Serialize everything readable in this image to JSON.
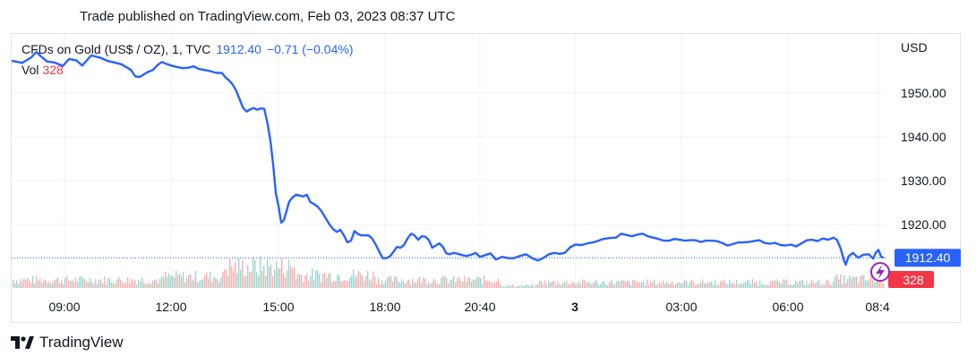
{
  "header": {
    "published": "Trade published on TradingView.com, Feb 03, 2023 08:37 UTC"
  },
  "legend": {
    "symbol": "CFDs on Gold (US$ / OZ), 1, TVC",
    "last": "1912.40",
    "change": "−0.71 (−0.04%)"
  },
  "volume": {
    "label": "Vol",
    "value": "328"
  },
  "currency": "USD",
  "watermark": {
    "brand": "TradingView"
  },
  "colors": {
    "line": "#2962ff",
    "vol_up": "#26a69a",
    "vol_down": "#ef5350",
    "last_badge": "#2962ff",
    "vol_badge": "#f23645",
    "lightning": "#9c27b0"
  },
  "chart_data": {
    "type": "line",
    "title": "CFDs on Gold (US$ / OZ), 1, TVC",
    "ylabel": "USD",
    "yticks": [
      "1950.00",
      "1940.00",
      "1930.00",
      "1920.00"
    ],
    "ylim": [
      1905.5,
      1963.5
    ],
    "xticks": [
      "09:00",
      "12:00",
      "15:00",
      "18:00",
      "20:40",
      "3",
      "03:00",
      "06:00",
      "08:4"
    ],
    "last_price": 1912.4,
    "last_price_label": "1912.40",
    "last_volume": 328,
    "last_volume_label": "328",
    "series": [
      {
        "values": [
          [
            0,
            1957.4
          ],
          [
            12,
            1956.9
          ],
          [
            22,
            1958.1
          ],
          [
            28,
            1959.4
          ],
          [
            32,
            1958.6
          ],
          [
            40,
            1957.2
          ],
          [
            48,
            1957.0
          ],
          [
            58,
            1956.2
          ],
          [
            65,
            1957.8
          ],
          [
            73,
            1957.5
          ],
          [
            80,
            1956.3
          ],
          [
            90,
            1958.6
          ],
          [
            100,
            1958.1
          ],
          [
            108,
            1957.4
          ],
          [
            116,
            1957.0
          ],
          [
            124,
            1956.6
          ],
          [
            130,
            1955.9
          ],
          [
            135,
            1955.3
          ],
          [
            140,
            1953.8
          ],
          [
            145,
            1953.7
          ],
          [
            150,
            1954.3
          ],
          [
            155,
            1954.9
          ],
          [
            160,
            1955.3
          ],
          [
            165,
            1956.4
          ],
          [
            170,
            1957.1
          ],
          [
            176,
            1956.6
          ],
          [
            182,
            1956.2
          ],
          [
            188,
            1955.9
          ],
          [
            194,
            1955.7
          ],
          [
            200,
            1955.8
          ],
          [
            206,
            1956.1
          ],
          [
            212,
            1955.5
          ],
          [
            218,
            1955.3
          ],
          [
            225,
            1955.0
          ],
          [
            232,
            1954.6
          ],
          [
            238,
            1954.6
          ],
          [
            242,
            1953.6
          ],
          [
            246,
            1952.9
          ],
          [
            250,
            1952.0
          ],
          [
            254,
            1950.6
          ],
          [
            258,
            1948.6
          ],
          [
            262,
            1946.6
          ],
          [
            266,
            1945.8
          ],
          [
            270,
            1946.3
          ],
          [
            274,
            1946.6
          ],
          [
            278,
            1946.2
          ],
          [
            282,
            1946.5
          ],
          [
            286,
            1946.4
          ],
          [
            290,
            1942.6
          ],
          [
            293,
            1938.8
          ],
          [
            296,
            1933.6
          ],
          [
            299,
            1927.1
          ],
          [
            302,
            1924.3
          ],
          [
            305,
            1920.4
          ],
          [
            308,
            1921.0
          ],
          [
            311,
            1923.0
          ],
          [
            314,
            1925.2
          ],
          [
            318,
            1926.2
          ],
          [
            322,
            1926.8
          ],
          [
            326,
            1926.6
          ],
          [
            330,
            1926.4
          ],
          [
            334,
            1926.8
          ],
          [
            338,
            1925.1
          ],
          [
            342,
            1924.7
          ],
          [
            346,
            1924.1
          ],
          [
            350,
            1923.2
          ],
          [
            355,
            1921.6
          ],
          [
            360,
            1919.9
          ],
          [
            364,
            1918.9
          ],
          [
            368,
            1918.3
          ],
          [
            372,
            1918.8
          ],
          [
            376,
            1917.5
          ],
          [
            380,
            1915.9
          ],
          [
            384,
            1916.3
          ],
          [
            388,
            1918.5
          ],
          [
            392,
            1917.8
          ],
          [
            396,
            1917.5
          ],
          [
            400,
            1917.5
          ],
          [
            404,
            1917.5
          ],
          [
            408,
            1916.8
          ],
          [
            412,
            1915.4
          ],
          [
            416,
            1913.8
          ],
          [
            420,
            1912.3
          ],
          [
            424,
            1912.3
          ],
          [
            428,
            1912.7
          ],
          [
            432,
            1913.7
          ],
          [
            436,
            1914.9
          ],
          [
            440,
            1914.7
          ],
          [
            444,
            1915.3
          ],
          [
            448,
            1916.8
          ],
          [
            452,
            1917.9
          ],
          [
            456,
            1917.5
          ],
          [
            460,
            1916.5
          ],
          [
            464,
            1917.3
          ],
          [
            468,
            1917.2
          ],
          [
            472,
            1916.5
          ],
          [
            476,
            1914.7
          ],
          [
            480,
            1915.2
          ],
          [
            484,
            1915.7
          ],
          [
            488,
            1914.9
          ],
          [
            492,
            1913.4
          ],
          [
            496,
            1913.2
          ],
          [
            500,
            1913.5
          ],
          [
            505,
            1913.3
          ],
          [
            510,
            1913.0
          ],
          [
            515,
            1912.8
          ],
          [
            520,
            1913.1
          ],
          [
            525,
            1913.5
          ],
          [
            530,
            1912.6
          ],
          [
            536,
            1913.0
          ],
          [
            542,
            1913.4
          ],
          [
            548,
            1912.0
          ],
          [
            555,
            1912.6
          ],
          [
            562,
            1912.3
          ],
          [
            568,
            1912.3
          ],
          [
            575,
            1912.8
          ],
          [
            582,
            1913.2
          ],
          [
            590,
            1912.2
          ],
          [
            596,
            1911.8
          ],
          [
            602,
            1912.4
          ],
          [
            608,
            1913.2
          ],
          [
            614,
            1913.5
          ],
          [
            620,
            1913.3
          ],
          [
            626,
            1913.5
          ],
          [
            632,
            1914.8
          ],
          [
            638,
            1915.4
          ],
          [
            645,
            1915.3
          ],
          [
            652,
            1915.7
          ],
          [
            660,
            1916.0
          ],
          [
            668,
            1916.6
          ],
          [
            676,
            1916.9
          ],
          [
            684,
            1917.0
          ],
          [
            690,
            1917.9
          ],
          [
            696,
            1917.6
          ],
          [
            702,
            1917.3
          ],
          [
            708,
            1917.7
          ],
          [
            714,
            1917.9
          ],
          [
            720,
            1917.3
          ],
          [
            726,
            1917.0
          ],
          [
            732,
            1916.7
          ],
          [
            738,
            1916.3
          ],
          [
            744,
            1916.3
          ],
          [
            750,
            1916.7
          ],
          [
            756,
            1916.5
          ],
          [
            762,
            1916.3
          ],
          [
            768,
            1916.4
          ],
          [
            774,
            1916.4
          ],
          [
            780,
            1916.0
          ],
          [
            786,
            1916.3
          ],
          [
            792,
            1916.3
          ],
          [
            798,
            1916.2
          ],
          [
            804,
            1915.8
          ],
          [
            810,
            1915.2
          ],
          [
            816,
            1915.5
          ],
          [
            822,
            1915.9
          ],
          [
            828,
            1915.9
          ],
          [
            834,
            1916.0
          ],
          [
            840,
            1916.2
          ],
          [
            846,
            1916.4
          ],
          [
            852,
            1915.8
          ],
          [
            858,
            1915.6
          ],
          [
            864,
            1915.8
          ],
          [
            870,
            1915.3
          ],
          [
            876,
            1915.2
          ],
          [
            882,
            1915.4
          ],
          [
            888,
            1915.0
          ],
          [
            894,
            1915.7
          ],
          [
            900,
            1916.4
          ],
          [
            906,
            1916.5
          ],
          [
            912,
            1916.2
          ],
          [
            918,
            1916.8
          ],
          [
            924,
            1916.5
          ],
          [
            930,
            1917.0
          ],
          [
            934,
            1916.5
          ],
          [
            938,
            1914.6
          ],
          [
            942,
            1911.8
          ],
          [
            944,
            1910.8
          ],
          [
            947,
            1912.7
          ],
          [
            952,
            1913.5
          ],
          [
            958,
            1912.4
          ],
          [
            964,
            1913.1
          ],
          [
            970,
            1913.2
          ],
          [
            975,
            1912.2
          ],
          [
            978,
            1913.6
          ],
          [
            981,
            1914.2
          ],
          [
            984,
            1912.6
          ],
          [
            987,
            1912.4
          ]
        ]
      }
    ]
  }
}
